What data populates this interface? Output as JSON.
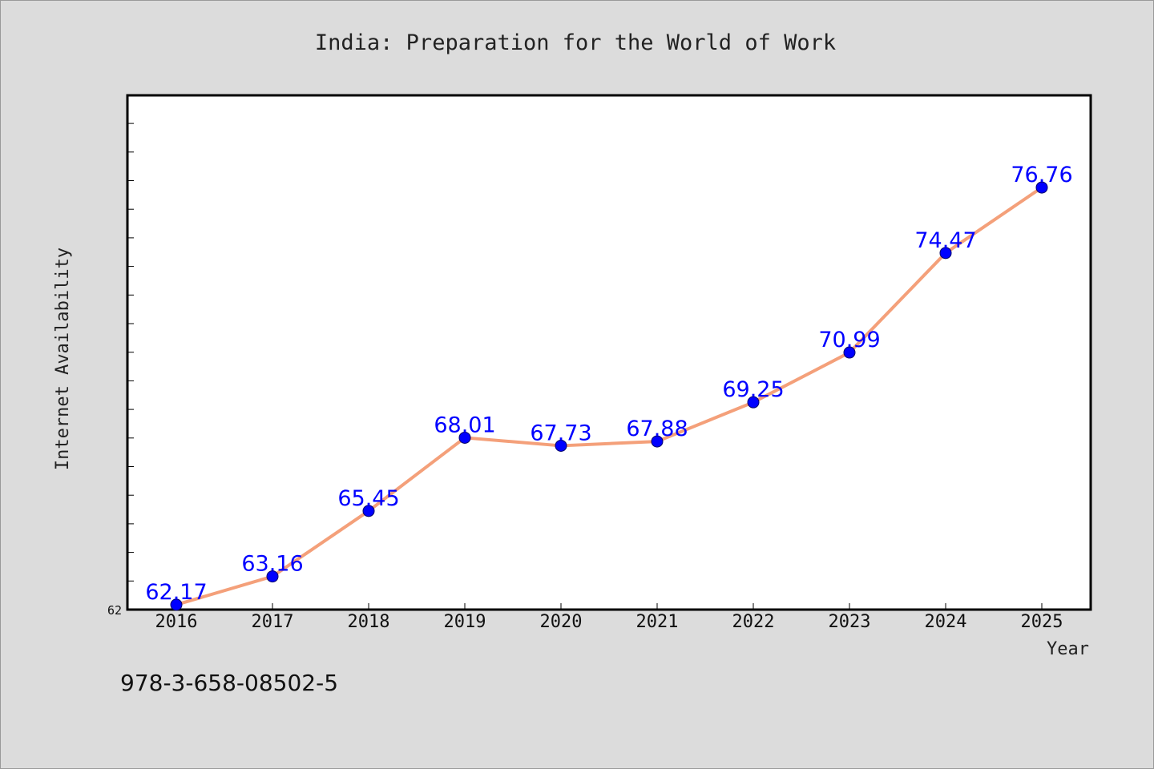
{
  "chart_data": {
    "type": "line",
    "title": "India: Preparation for the World of Work",
    "xlabel": "Year",
    "ylabel": "Internet Availability",
    "x": [
      "2016",
      "2017",
      "2018",
      "2019",
      "2020",
      "2021",
      "2022",
      "2023",
      "2024",
      "2025"
    ],
    "series": [
      {
        "values": [
          62.17,
          63.16,
          65.45,
          68.01,
          67.73,
          67.88,
          69.25,
          70.99,
          74.47,
          76.76
        ]
      }
    ],
    "data_labels": [
      "62.17",
      "63.16",
      "65.45",
      "68.01",
      "67.73",
      "67.88",
      "69.25",
      "70.99",
      "74.47",
      "76.76"
    ],
    "y_tick_labels": [
      "62"
    ],
    "ylim": [
      62,
      80
    ],
    "grid": false,
    "colors": {
      "line": "#f4a07a",
      "marker": "#0000ff",
      "label": "#0000ff",
      "background": "#dcdcdc",
      "plot_background": "#ffffff"
    }
  },
  "footer": {
    "code": "978-3-658-08502-5"
  }
}
